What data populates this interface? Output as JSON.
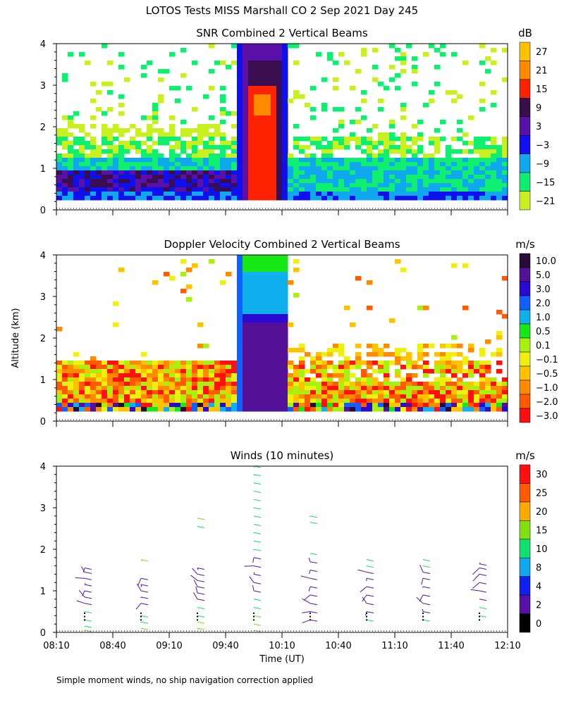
{
  "page": {
    "title": "LOTOS Tests MISS Marshall CO   2 Sep 2021 Day 245",
    "footnote": "Simple moment winds, no ship navigation correction applied"
  },
  "chart_data": [
    {
      "type": "heatmap",
      "title": "SNR Combined 2 Vertical Beams",
      "unit": "dB",
      "ylabel": "",
      "ylim": [
        0,
        4
      ],
      "yticks": [
        "0",
        "1",
        "2",
        "3",
        "4"
      ],
      "xlim": [
        "08:10",
        "12:10"
      ],
      "colorbar": {
        "labels": [
          "27",
          "21",
          "15",
          "9",
          "3",
          "−3",
          "−9",
          "−15",
          "−21"
        ],
        "colors": [
          "#ffc200",
          "#ff8a00",
          "#ff2200",
          "#3a0d4f",
          "#5a10a8",
          "#1010ee",
          "#10a8ee",
          "#10ee70",
          "#c8f020"
        ]
      },
      "features": {
        "boundary_layer_top_km": 1.3,
        "plume": {
          "start": "09:45",
          "end": "10:12",
          "top_km": 4.0,
          "core_snr_db": 15
        },
        "noise_above_km": 1.6
      }
    },
    {
      "type": "heatmap",
      "title": "Doppler Velocity Combined 2 Vertical Beams",
      "unit": "m/s",
      "ylabel": "Altitude (km)",
      "ylim": [
        0,
        4
      ],
      "yticks": [
        "0",
        "1",
        "2",
        "3",
        "4"
      ],
      "xlim": [
        "08:10",
        "12:10"
      ],
      "colorbar": {
        "labels": [
          "10.0",
          "5.0",
          "3.0",
          "2.0",
          "1.0",
          "0.5",
          "0.1",
          "−0.1",
          "−0.5",
          "−1.0",
          "−2.0",
          "−3.0"
        ],
        "colors": [
          "#2a0a36",
          "#55109a",
          "#2a0ad0",
          "#1060ff",
          "#10b0ee",
          "#18e818",
          "#a8f010",
          "#f0f010",
          "#ffc200",
          "#ff8a00",
          "#ff5a00",
          "#ff1010"
        ]
      },
      "features": {
        "boundary_layer_top_km": 1.5,
        "plume": {
          "start": "09:45",
          "end": "10:12",
          "top_km": 4.0,
          "core_velocity_ms": 5.0
        }
      }
    },
    {
      "type": "scatter",
      "title": "Winds (10 minutes)",
      "unit": "m/s",
      "xlabel": "Time (UT)",
      "ylim": [
        0,
        4
      ],
      "yticks": [
        "0",
        "1",
        "2",
        "3",
        "4"
      ],
      "xticks": [
        "08:10",
        "08:40",
        "09:10",
        "09:40",
        "10:10",
        "10:40",
        "11:10",
        "11:40",
        "12:10"
      ],
      "colorbar": {
        "labels": [
          "30",
          "25",
          "20",
          "15",
          "10",
          "8",
          "4",
          "2",
          "0"
        ],
        "colors": [
          "#ff1010",
          "#ff5a00",
          "#ffa800",
          "#80e010",
          "#10e070",
          "#10a8ee",
          "#1020ee",
          "#5a10a8",
          "#000000"
        ]
      },
      "profile_times": [
        "08:25",
        "08:55",
        "09:25",
        "09:55",
        "10:25",
        "10:55",
        "11:25",
        "11:55"
      ],
      "profiles": [
        {
          "time": "08:25",
          "barbs": [
            [
              0.05,
              18
            ],
            [
              0.15,
              14
            ],
            [
              0.3,
              12
            ],
            [
              0.5,
              10
            ],
            [
              0.7,
              3
            ],
            [
              0.85,
              3
            ],
            [
              1.0,
              3
            ],
            [
              1.15,
              2
            ],
            [
              1.3,
              2
            ],
            [
              1.45,
              3
            ],
            [
              1.55,
              3
            ]
          ]
        },
        {
          "time": "08:55",
          "barbs": [
            [
              0.1,
              15
            ],
            [
              0.25,
              14
            ],
            [
              0.4,
              12
            ],
            [
              0.7,
              3
            ],
            [
              0.85,
              3
            ],
            [
              1.0,
              3
            ],
            [
              1.15,
              3
            ],
            [
              1.3,
              2
            ],
            [
              1.75,
              15
            ]
          ]
        },
        {
          "time": "09:25",
          "barbs": [
            [
              0.1,
              15
            ],
            [
              0.25,
              15
            ],
            [
              0.4,
              12
            ],
            [
              0.6,
              12
            ],
            [
              0.8,
              3
            ],
            [
              0.95,
              3
            ],
            [
              1.1,
              3
            ],
            [
              1.25,
              3
            ],
            [
              1.4,
              3
            ],
            [
              1.55,
              3
            ],
            [
              2.55,
              14
            ],
            [
              2.75,
              15
            ]
          ]
        },
        {
          "time": "09:55",
          "barbs": [
            [
              0.05,
              15
            ],
            [
              0.2,
              15
            ],
            [
              0.4,
              15
            ],
            [
              0.6,
              12
            ],
            [
              0.8,
              10
            ],
            [
              1.0,
              3
            ],
            [
              1.2,
              3
            ],
            [
              1.4,
              3
            ],
            [
              1.6,
              3
            ],
            [
              1.8,
              3
            ],
            [
              2.0,
              14
            ],
            [
              2.2,
              14
            ],
            [
              2.4,
              12
            ],
            [
              2.6,
              12
            ],
            [
              2.8,
              12
            ],
            [
              3.0,
              12
            ],
            [
              3.2,
              12
            ],
            [
              3.4,
              12
            ],
            [
              3.6,
              12
            ],
            [
              3.8,
              12
            ],
            [
              4.0,
              14
            ]
          ]
        },
        {
          "time": "10:25",
          "barbs": [
            [
              0.3,
              3
            ],
            [
              0.5,
              3
            ],
            [
              0.7,
              3
            ],
            [
              0.9,
              3
            ],
            [
              1.1,
              3
            ],
            [
              1.3,
              3
            ],
            [
              1.5,
              3
            ],
            [
              1.7,
              3
            ],
            [
              1.9,
              14
            ],
            [
              2.65,
              12
            ],
            [
              2.8,
              12
            ]
          ]
        },
        {
          "time": "10:55",
          "barbs": [
            [
              0.3,
              10
            ],
            [
              0.5,
              3
            ],
            [
              0.7,
              3
            ],
            [
              0.9,
              3
            ],
            [
              1.1,
              3
            ],
            [
              1.3,
              3
            ],
            [
              1.45,
              3
            ],
            [
              1.6,
              12
            ],
            [
              1.75,
              14
            ]
          ]
        },
        {
          "time": "11:25",
          "barbs": [
            [
              0.3,
              12
            ],
            [
              0.5,
              3
            ],
            [
              0.7,
              3
            ],
            [
              0.9,
              3
            ],
            [
              1.1,
              3
            ],
            [
              1.3,
              3
            ],
            [
              1.45,
              3
            ],
            [
              1.6,
              12
            ],
            [
              1.75,
              14
            ]
          ]
        },
        {
          "time": "11:55",
          "barbs": [
            [
              0.4,
              10
            ],
            [
              0.6,
              10
            ],
            [
              0.8,
              3
            ],
            [
              1.0,
              3
            ],
            [
              1.2,
              3
            ],
            [
              1.4,
              3
            ],
            [
              1.55,
              3
            ],
            [
              1.65,
              3
            ]
          ]
        }
      ]
    }
  ]
}
